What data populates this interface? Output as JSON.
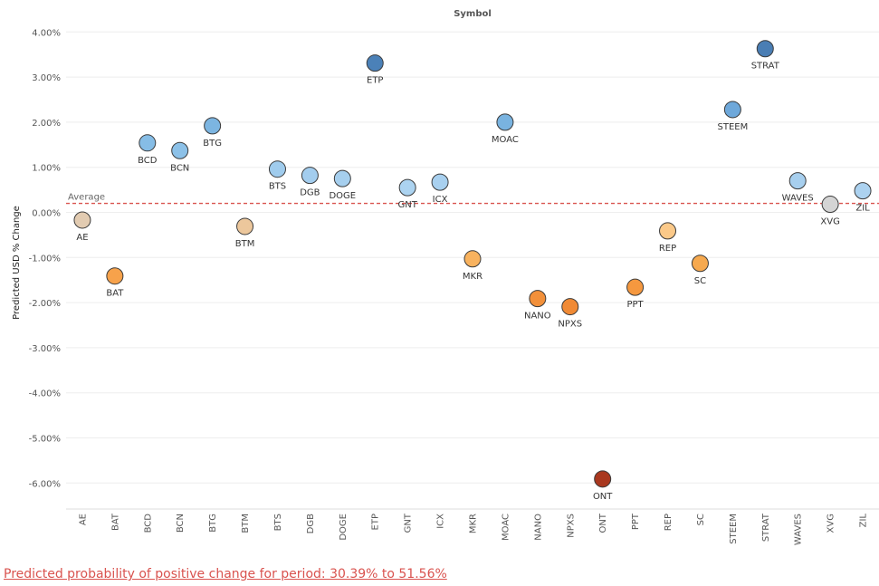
{
  "chart_data": {
    "type": "scatter",
    "title": "Symbol",
    "ylabel": "Predicted USD % Change",
    "ylim": [
      -6.5,
      4.2
    ],
    "yticks": [
      4,
      3,
      2,
      1,
      0,
      -1,
      -2,
      -3,
      -4,
      -5,
      -6
    ],
    "ytick_labels": [
      "4.00%",
      "3.00%",
      "2.00%",
      "1.00%",
      "0.00%",
      "-1.00%",
      "-2.00%",
      "-3.00%",
      "-4.00%",
      "-5.00%",
      "-6.00%"
    ],
    "reference_line": {
      "label": "Average",
      "value": 0.2,
      "color": "#d9534f"
    },
    "grid": true,
    "points": [
      {
        "symbol": "AE",
        "value": -0.17,
        "color": "#e2cbb1"
      },
      {
        "symbol": "BAT",
        "value": -1.41,
        "color": "#f7a24b"
      },
      {
        "symbol": "BCD",
        "value": 1.54,
        "color": "#86bde6"
      },
      {
        "symbol": "BCN",
        "value": 1.37,
        "color": "#8cc1e8"
      },
      {
        "symbol": "BTG",
        "value": 1.92,
        "color": "#7cb5e1"
      },
      {
        "symbol": "BTM",
        "value": -0.31,
        "color": "#ecc79c"
      },
      {
        "symbol": "BTS",
        "value": 0.96,
        "color": "#a0cced"
      },
      {
        "symbol": "DGB",
        "value": 0.82,
        "color": "#a3cdee"
      },
      {
        "symbol": "DOGE",
        "value": 0.75,
        "color": "#a6cfee"
      },
      {
        "symbol": "ETP",
        "value": 3.31,
        "color": "#4b81b8"
      },
      {
        "symbol": "GNT",
        "value": 0.55,
        "color": "#acd3f0"
      },
      {
        "symbol": "ICX",
        "value": 0.67,
        "color": "#a8d0ef"
      },
      {
        "symbol": "MKR",
        "value": -1.03,
        "color": "#f8b25e"
      },
      {
        "symbol": "MOAC",
        "value": 2.0,
        "color": "#79b3e0"
      },
      {
        "symbol": "NANO",
        "value": -1.91,
        "color": "#f2903a"
      },
      {
        "symbol": "NPXS",
        "value": -2.09,
        "color": "#f08a35"
      },
      {
        "symbol": "ONT",
        "value": -5.91,
        "color": "#a9381f"
      },
      {
        "symbol": "PPT",
        "value": -1.66,
        "color": "#f5983f"
      },
      {
        "symbol": "REP",
        "value": -0.41,
        "color": "#fbc989"
      },
      {
        "symbol": "SC",
        "value": -1.13,
        "color": "#f6a94f"
      },
      {
        "symbol": "STEEM",
        "value": 2.28,
        "color": "#6ea8da"
      },
      {
        "symbol": "STRAT",
        "value": 3.63,
        "color": "#4a7eb4"
      },
      {
        "symbol": "WAVES",
        "value": 0.7,
        "color": "#a7cfee"
      },
      {
        "symbol": "XVG",
        "value": 0.18,
        "color": "#d4d4d4"
      },
      {
        "symbol": "ZIL",
        "value": 0.48,
        "color": "#acd2f0"
      }
    ]
  },
  "footer": {
    "text": "Predicted probability of positive change for period:  30.39% to 51.56% "
  }
}
